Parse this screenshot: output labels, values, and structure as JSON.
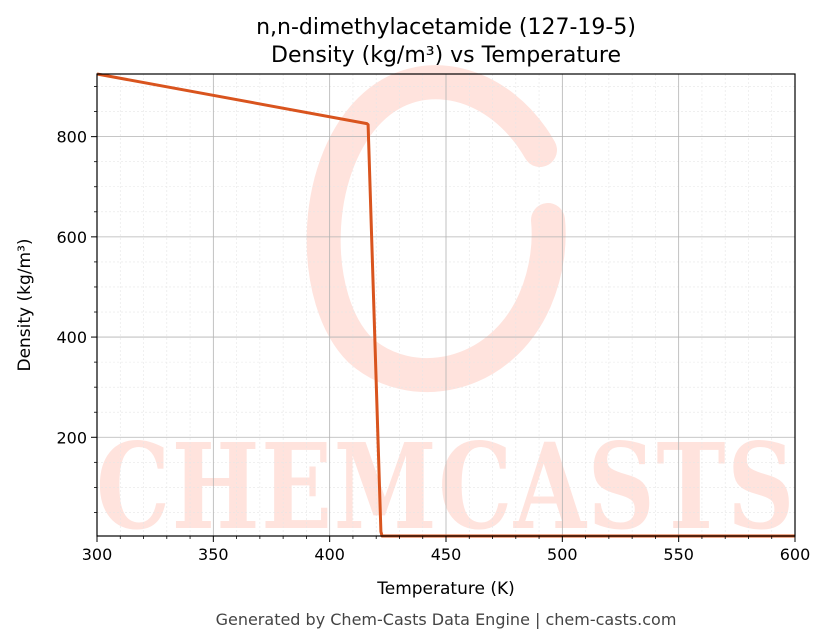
{
  "footer": "Generated by Chem-Casts Data Engine | chem-casts.com",
  "watermark": "CHEMCASTS",
  "chart_data": {
    "type": "line",
    "title": [
      "n,n-dimethylacetamide (127-19-5)",
      "Density (kg/m³) vs Temperature"
    ],
    "xlabel": "Temperature (K)",
    "ylabel": "Density (kg/m³)",
    "xlim": [
      300,
      600
    ],
    "ylim": [
      3,
      925
    ],
    "xticks": [
      300,
      350,
      400,
      450,
      500,
      550,
      600
    ],
    "yticks": [
      200,
      400,
      600,
      800
    ],
    "grid": true,
    "line_color": "#d9541e",
    "series": [
      {
        "x": [
          300,
          416,
          416.5,
          422,
          422.5,
          600
        ],
        "y": [
          925,
          826,
          824,
          12,
          3,
          3
        ]
      }
    ]
  }
}
